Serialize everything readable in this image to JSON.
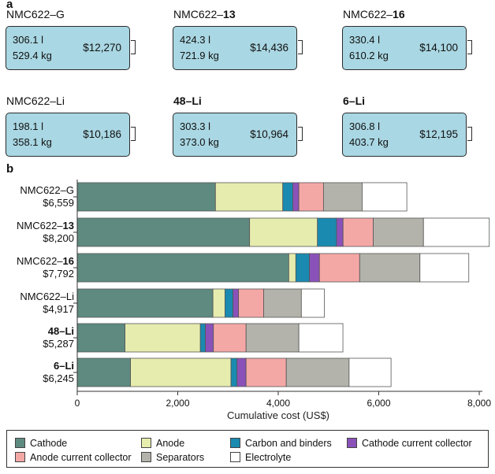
{
  "panel_a": {
    "letter": "a",
    "packs": [
      {
        "prefix": "NMC622–",
        "suffix": "G",
        "bold": false,
        "volume": "306.1 l",
        "mass": "529.4 kg",
        "cost": "$12,270"
      },
      {
        "prefix": "NMC622–",
        "suffix": "13",
        "bold": true,
        "volume": "424.3 l",
        "mass": "721.9 kg",
        "cost": "$14,436"
      },
      {
        "prefix": "NMC622–",
        "suffix": "16",
        "bold": true,
        "volume": "330.4 l",
        "mass": "610.2 kg",
        "cost": "$14,100"
      },
      {
        "prefix": "NMC622–",
        "suffix": "Li",
        "bold": false,
        "volume": "198.1 l",
        "mass": "358.1 kg",
        "cost": "$10,186"
      },
      {
        "prefix": "",
        "suffix": "48–Li",
        "bold": true,
        "volume": "303.3 l",
        "mass": "373.0 kg",
        "cost": "$10,964"
      },
      {
        "prefix": "",
        "suffix": "6–Li",
        "bold": true,
        "volume": "306.8 l",
        "mass": "403.7 kg",
        "cost": "$12,195"
      }
    ]
  },
  "panel_b": {
    "letter": "b",
    "row_labels": [
      {
        "prefix": "NMC622–",
        "suffix": "G",
        "bold": false,
        "total": "$6,559"
      },
      {
        "prefix": "NMC622–",
        "suffix": "13",
        "bold": true,
        "total": "$8,200"
      },
      {
        "prefix": "NMC622–",
        "suffix": "16",
        "bold": true,
        "total": "$7,792"
      },
      {
        "prefix": "NMC622–",
        "suffix": "Li",
        "bold": false,
        "total": "$4,917"
      },
      {
        "prefix": "",
        "suffix": "48–Li",
        "bold": true,
        "total": "$5,287"
      },
      {
        "prefix": "",
        "suffix": "6–Li",
        "bold": true,
        "total": "$6,245"
      }
    ]
  },
  "chart_data": {
    "type": "bar",
    "orientation": "horizontal",
    "stacked": true,
    "title": "",
    "xlabel": "Cumulative cost (US$)",
    "ylabel": "",
    "xlim": [
      0,
      8200
    ],
    "xticks": [
      "0",
      "2,000",
      "4,000",
      "6,000",
      "8,000"
    ],
    "xtick_values": [
      0,
      2000,
      4000,
      6000,
      8000
    ],
    "categories": [
      "NMC622–G",
      "NMC622–13",
      "NMC622–16",
      "NMC622–Li",
      "48–Li",
      "6–Li"
    ],
    "series": [
      {
        "name": "Cathode",
        "color": "#5e8a80",
        "values": [
          2750,
          3430,
          4210,
          2700,
          950,
          1060
        ]
      },
      {
        "name": "Anode",
        "color": "#e6ecae",
        "values": [
          1340,
          1350,
          140,
          240,
          1500,
          2000
        ]
      },
      {
        "name": "Carbon and binders",
        "color": "#1a8ab0",
        "values": [
          200,
          380,
          270,
          160,
          100,
          120
        ]
      },
      {
        "name": "Cathode current collector",
        "color": "#8a52b8",
        "values": [
          120,
          130,
          200,
          110,
          160,
          180
        ]
      },
      {
        "name": "Anode current collector",
        "color": "#f4a8a6",
        "values": [
          490,
          600,
          800,
          500,
          650,
          800
        ]
      },
      {
        "name": "Separators",
        "color": "#b3b3ab",
        "values": [
          770,
          1000,
          1200,
          750,
          1050,
          1250
        ]
      },
      {
        "name": "Electrolyte",
        "color": "#ffffff",
        "values": [
          889,
          1310,
          972,
          457,
          877,
          835
        ]
      }
    ],
    "legend_position": "bottom",
    "grid": false
  }
}
